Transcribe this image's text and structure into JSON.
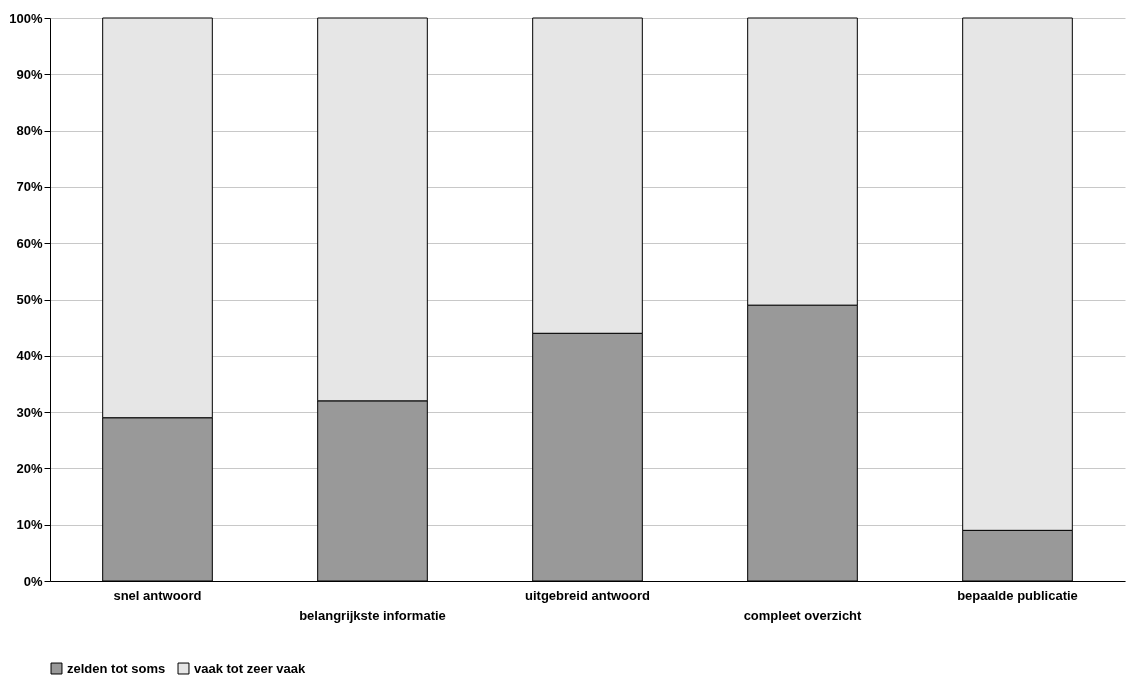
{
  "chart_data": {
    "type": "bar",
    "stacked": true,
    "categories": [
      "snel antwoord",
      "belangrijkste informatie",
      "uitgebreid antwoord",
      "compleet overzicht",
      "bepaalde publicatie"
    ],
    "series": [
      {
        "name": "zelden tot soms",
        "color": "#999999",
        "values": [
          29,
          32,
          44,
          49,
          9
        ]
      },
      {
        "name": "vaak tot zeer vaak",
        "color": "#e6e6e6",
        "values": [
          71,
          68,
          56,
          51,
          91
        ]
      }
    ],
    "ylim": [
      0,
      100
    ],
    "yticks": [
      {
        "value": 0,
        "label": "0%"
      },
      {
        "value": 10,
        "label": "10%"
      },
      {
        "value": 20,
        "label": "20%"
      },
      {
        "value": 30,
        "label": "30%"
      },
      {
        "value": 40,
        "label": "40%"
      },
      {
        "value": 50,
        "label": "50%"
      },
      {
        "value": 60,
        "label": "60%"
      },
      {
        "value": 70,
        "label": "70%"
      },
      {
        "value": 80,
        "label": "80%"
      },
      {
        "value": 90,
        "label": "90%"
      },
      {
        "value": 100,
        "label": "100%"
      }
    ],
    "grid": "y",
    "legend": "bottom left"
  }
}
